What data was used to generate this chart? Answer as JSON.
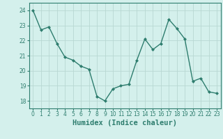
{
  "x": [
    0,
    1,
    2,
    3,
    4,
    5,
    6,
    7,
    8,
    9,
    10,
    11,
    12,
    13,
    14,
    15,
    16,
    17,
    18,
    19,
    20,
    21,
    22,
    23
  ],
  "y": [
    24.0,
    22.7,
    22.9,
    21.8,
    20.9,
    20.7,
    20.3,
    20.1,
    18.3,
    18.0,
    18.8,
    19.0,
    19.1,
    20.7,
    22.1,
    21.4,
    21.8,
    23.4,
    22.8,
    22.1,
    19.3,
    19.5,
    18.6,
    18.5
  ],
  "line_color": "#2e7d6e",
  "marker": "D",
  "marker_size": 2.0,
  "line_width": 1.0,
  "bg_color": "#d4f0ec",
  "grid_color": "#b8d8d2",
  "xlabel": "Humidex (Indice chaleur)",
  "ylim": [
    17.5,
    24.5
  ],
  "xlim": [
    -0.5,
    23.5
  ],
  "yticks": [
    18,
    19,
    20,
    21,
    22,
    23,
    24
  ],
  "xticks": [
    0,
    1,
    2,
    3,
    4,
    5,
    6,
    7,
    8,
    9,
    10,
    11,
    12,
    13,
    14,
    15,
    16,
    17,
    18,
    19,
    20,
    21,
    22,
    23
  ],
  "tick_fontsize": 5.5,
  "xlabel_fontsize": 7.5
}
